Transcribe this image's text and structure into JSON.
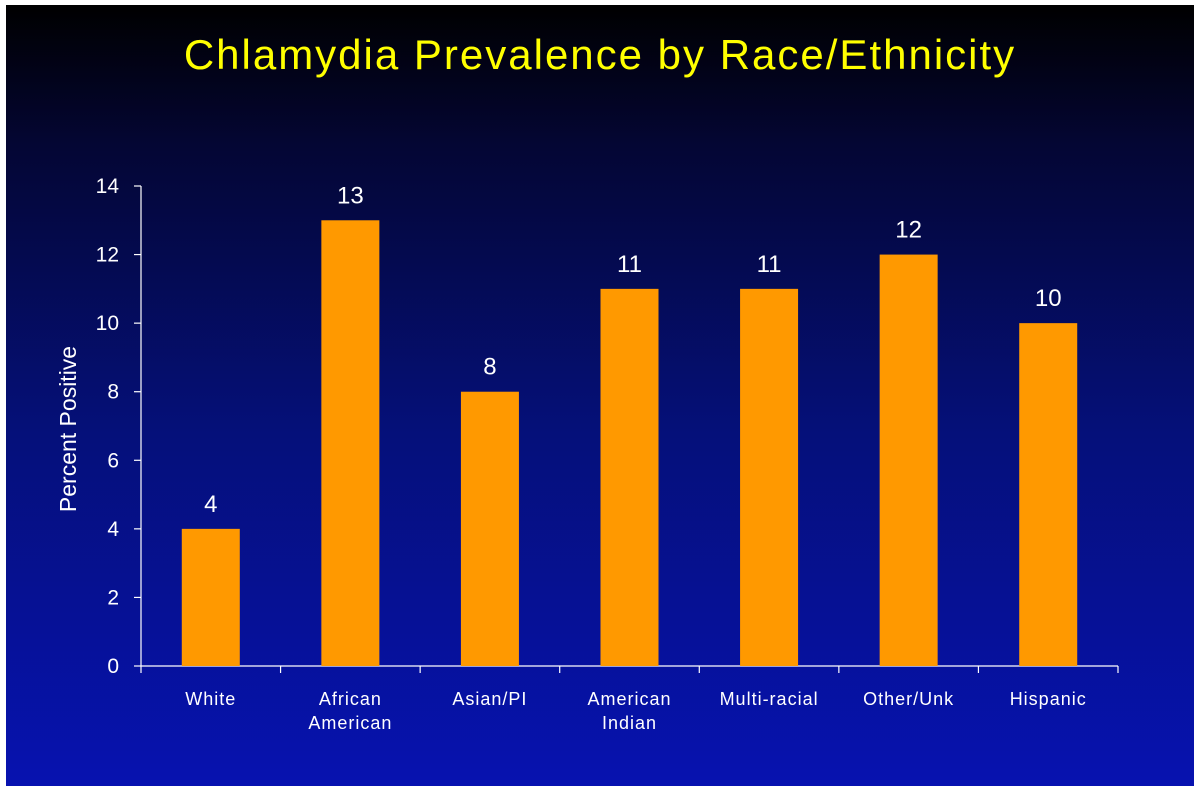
{
  "slide": {
    "title": "Chlamydia Prevalence by Race/Ethnicity"
  },
  "colors": {
    "bar": "#ff9900",
    "text": "#ffffff",
    "title": "#ffff00",
    "axis": "#ffffff"
  },
  "chart_data": {
    "type": "bar",
    "title": "Chlamydia Prevalence by Race/Ethnicity",
    "xlabel": "",
    "ylabel": "Percent Positive",
    "categories": [
      [
        "White"
      ],
      [
        "African",
        "American"
      ],
      [
        "Asian/PI"
      ],
      [
        "American",
        "Indian"
      ],
      [
        "Multi-racial"
      ],
      [
        "Other/Unk"
      ],
      [
        "Hispanic"
      ]
    ],
    "values": [
      4,
      13,
      8,
      11,
      11,
      12,
      10
    ],
    "ylim": [
      0,
      14
    ],
    "yticks": [
      0,
      2,
      4,
      6,
      8,
      10,
      12,
      14
    ],
    "grid": false,
    "legend": "none",
    "data_labels": true
  }
}
